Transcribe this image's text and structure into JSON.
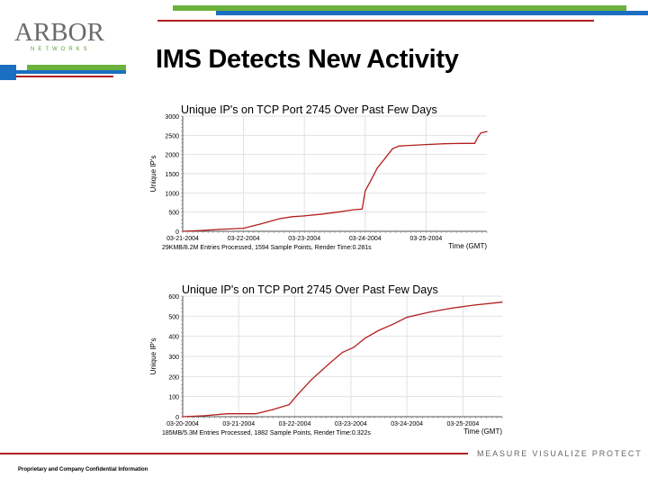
{
  "slide": {
    "title": "IMS Detects New Activity",
    "logo_text": "ARBOR",
    "logo_sub": "NETWORKS",
    "footer_note": "Proprietary and Company Confidential Information",
    "tagline": "MEASURE VISUALIZE PROTECT",
    "colors": {
      "green": "#6ab23c",
      "blue": "#1b6fc0",
      "red": "#b41e1e"
    }
  },
  "chart_data": [
    {
      "type": "line",
      "title": "Unique IP's on TCP Port 2745 Over Past Few Days",
      "xlabel": "Time (GMT)",
      "ylabel": "Unique IP's",
      "ylim": [
        0,
        3000
      ],
      "yticks": [
        0,
        500,
        1000,
        1500,
        2000,
        2500,
        3000
      ],
      "ytick_labels": [
        "0",
        "500",
        "1000",
        "1500",
        "2000",
        "2500",
        "3000"
      ],
      "xlim": [
        0,
        5.0
      ],
      "xticks": [
        0,
        1,
        2,
        3,
        4
      ],
      "xtick_labels": [
        "03-21-2004",
        "03-22-2004",
        "03-23-2004",
        "03-24-2004",
        "03-25-2004"
      ],
      "grid": true,
      "footer": "29KMB/8.2M Entries Processed, 1594 Sample Points, Render Time:0.281s",
      "series": [
        {
          "color": "#b41e1e",
          "x": [
            0,
            0.3,
            0.6,
            1.0,
            1.3,
            1.6,
            1.8,
            2.0,
            2.3,
            2.6,
            2.8,
            2.95,
            3.0,
            3.1,
            3.2,
            3.35,
            3.45,
            3.55,
            3.65,
            3.8,
            4.0,
            4.3,
            4.6,
            4.8,
            4.85,
            4.9,
            5.0
          ],
          "y": [
            0,
            20,
            50,
            80,
            200,
            330,
            380,
            400,
            450,
            510,
            560,
            580,
            1050,
            1350,
            1650,
            1950,
            2150,
            2220,
            2230,
            2240,
            2260,
            2280,
            2290,
            2290,
            2450,
            2560,
            2600
          ]
        }
      ]
    },
    {
      "type": "line",
      "title": "Unique IP's on TCP Port 2745 Over Past Few Days",
      "xlabel": "Time (GMT)",
      "ylabel": "Unique IP's",
      "ylim": [
        0,
        600
      ],
      "yticks": [
        0,
        100,
        200,
        300,
        400,
        500,
        600
      ],
      "ytick_labels": [
        "0",
        "100",
        "200",
        "300",
        "400",
        "500",
        "600"
      ],
      "xlim": [
        0,
        5.7
      ],
      "xticks": [
        0,
        1,
        2,
        3,
        4,
        5
      ],
      "xtick_labels": [
        "03-20-2004",
        "03-21-2004",
        "03-22-2004",
        "03-23-2004",
        "03-24-2004",
        "03-25-2004"
      ],
      "grid": true,
      "footer": "185MB/5.3M Entries Processed, 1882 Sample Points, Render Time:0.322s",
      "series": [
        {
          "color": "#b41e1e",
          "x": [
            0,
            0.4,
            0.8,
            1.3,
            1.6,
            1.9,
            2.05,
            2.3,
            2.6,
            2.85,
            3.05,
            3.25,
            3.5,
            3.75,
            4.0,
            4.4,
            4.8,
            5.2,
            5.7
          ],
          "y": [
            0,
            5,
            15,
            15,
            35,
            60,
            110,
            185,
            260,
            320,
            345,
            390,
            430,
            460,
            495,
            520,
            540,
            555,
            570
          ]
        }
      ]
    }
  ]
}
